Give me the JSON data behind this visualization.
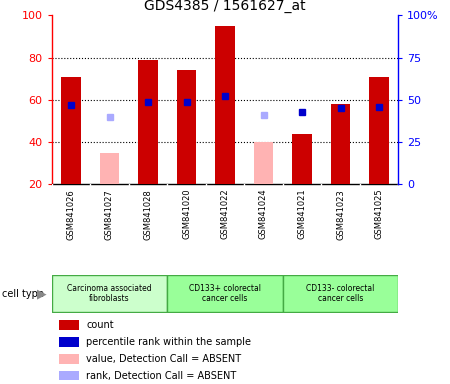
{
  "title": "GDS4385 / 1561627_at",
  "samples": [
    "GSM841026",
    "GSM841027",
    "GSM841028",
    "GSM841020",
    "GSM841022",
    "GSM841024",
    "GSM841021",
    "GSM841023",
    "GSM841025"
  ],
  "count_values": [
    71,
    null,
    79,
    74,
    95,
    null,
    44,
    58,
    71
  ],
  "count_absent": [
    null,
    35,
    null,
    null,
    null,
    40,
    null,
    null,
    null
  ],
  "rank_values": [
    47,
    null,
    49,
    49,
    52,
    null,
    43,
    45,
    46
  ],
  "rank_absent": [
    null,
    40,
    null,
    null,
    null,
    41,
    null,
    null,
    null
  ],
  "ylim_left": [
    20,
    100
  ],
  "ylim_right": [
    0,
    100
  ],
  "yticks_left": [
    20,
    40,
    60,
    80,
    100
  ],
  "yticks_right": [
    0,
    25,
    50,
    75,
    100
  ],
  "yticklabels_right": [
    "0",
    "25",
    "50",
    "75",
    "100%"
  ],
  "groups": [
    {
      "label": "Carcinoma associated\nfibroblasts",
      "start": 0,
      "end": 3,
      "color": "#ccffcc"
    },
    {
      "label": "CD133+ colorectal\ncancer cells",
      "start": 3,
      "end": 6,
      "color": "#99ff99"
    },
    {
      "label": "CD133- colorectal\ncancer cells",
      "start": 6,
      "end": 9,
      "color": "#99ff99"
    }
  ],
  "bar_width": 0.5,
  "count_color": "#cc0000",
  "count_absent_color": "#ffb3b3",
  "rank_color": "#0000cc",
  "rank_absent_color": "#aaaaff",
  "grid_color": "black",
  "sample_bg_color": "#cccccc",
  "legend_items": [
    {
      "label": "count",
      "color": "#cc0000"
    },
    {
      "label": "percentile rank within the sample",
      "color": "#0000cc"
    },
    {
      "label": "value, Detection Call = ABSENT",
      "color": "#ffb3b3"
    },
    {
      "label": "rank, Detection Call = ABSENT",
      "color": "#aaaaff"
    }
  ]
}
